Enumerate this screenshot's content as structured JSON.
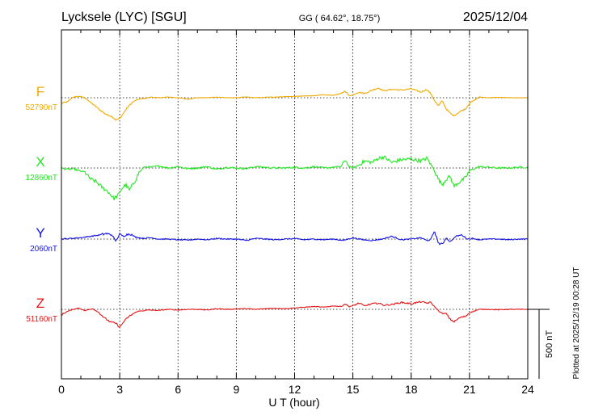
{
  "header": {
    "station": "Lycksele (LYC)  [SGU]",
    "coords": "GG ( 64.62°,  18.75°)",
    "date": "2025/12/04"
  },
  "side_note": "Plotted at 2025/12/19 00:28 UT",
  "scale_label": "500 nT",
  "chart_data": {
    "type": "line",
    "xlabel": "U T (hour)",
    "xlim": [
      0,
      24
    ],
    "xticks": [
      "0",
      "3",
      "6",
      "9",
      "12",
      "15",
      "18",
      "21",
      "24"
    ],
    "grid": true,
    "scale_bar_nT": 500,
    "series": [
      {
        "name": "F",
        "baseline_label": "52790nT",
        "baseline_nT": 52790,
        "color": "#f2a900",
        "t": [
          0,
          0.3,
          0.6,
          1.0,
          1.3,
          1.5,
          1.7,
          2.0,
          2.3,
          2.6,
          2.8,
          3.0,
          3.2,
          3.4,
          3.6,
          3.8,
          4.0,
          4.3,
          4.6,
          5.0,
          5.5,
          6.0,
          6.5,
          7.0,
          7.5,
          8.0,
          8.5,
          9.0,
          9.5,
          10.0,
          10.5,
          11.0,
          11.5,
          12.0,
          12.5,
          13.0,
          13.5,
          14.0,
          14.4,
          14.6,
          14.8,
          15.0,
          15.3,
          15.6,
          16.0,
          16.3,
          16.6,
          17.0,
          17.5,
          18.0,
          18.5,
          18.8,
          19.0,
          19.2,
          19.4,
          19.6,
          19.8,
          20.0,
          20.2,
          20.5,
          20.8,
          21.0,
          21.5,
          22.0,
          22.5,
          23.0,
          23.5,
          24.0
        ],
        "v": [
          -40,
          -30,
          5,
          10,
          -10,
          -35,
          -55,
          -90,
          -120,
          -135,
          -160,
          -150,
          -110,
          -70,
          -40,
          -20,
          -10,
          -5,
          5,
          0,
          5,
          0,
          -10,
          0,
          0,
          5,
          0,
          0,
          5,
          0,
          3,
          5,
          8,
          10,
          12,
          15,
          20,
          18,
          30,
          50,
          15,
          20,
          40,
          30,
          55,
          70,
          50,
          60,
          55,
          65,
          40,
          60,
          30,
          -20,
          -60,
          -20,
          -80,
          -110,
          -130,
          -100,
          -80,
          -40,
          5,
          0,
          3,
          0,
          0,
          0
        ]
      },
      {
        "name": "X",
        "baseline_label": "12860nT",
        "baseline_nT": 12860,
        "color": "#22e822",
        "t": [
          0,
          0.3,
          0.6,
          0.9,
          1.2,
          1.5,
          1.8,
          2.1,
          2.4,
          2.7,
          2.9,
          3.1,
          3.3,
          3.5,
          3.8,
          4.0,
          4.3,
          4.6,
          5.0,
          5.5,
          6.0,
          6.5,
          7.0,
          7.5,
          8.0,
          8.5,
          9.0,
          9.5,
          10.0,
          10.5,
          11.0,
          11.5,
          12.0,
          12.5,
          13.0,
          13.5,
          14.0,
          14.4,
          14.6,
          14.8,
          15.0,
          15.3,
          15.6,
          16.0,
          16.3,
          16.6,
          17.0,
          17.5,
          18.0,
          18.5,
          18.8,
          19.0,
          19.2,
          19.4,
          19.6,
          19.8,
          20.0,
          20.2,
          20.5,
          20.8,
          21.0,
          21.5,
          22.0,
          22.5,
          23.0,
          23.5,
          24.0
        ],
        "v": [
          0,
          -10,
          -5,
          -20,
          -30,
          -80,
          -100,
          -140,
          -170,
          -220,
          -200,
          -150,
          -120,
          -160,
          -90,
          -30,
          10,
          5,
          15,
          0,
          10,
          -5,
          0,
          10,
          -10,
          5,
          0,
          -5,
          10,
          5,
          0,
          0,
          5,
          0,
          10,
          0,
          5,
          10,
          60,
          10,
          0,
          20,
          50,
          40,
          70,
          80,
          40,
          60,
          65,
          50,
          70,
          30,
          -20,
          -80,
          -120,
          -80,
          -60,
          -130,
          -100,
          -70,
          -20,
          10,
          5,
          0,
          0,
          5,
          5
        ]
      },
      {
        "name": "Y",
        "baseline_label": "2060nT",
        "baseline_nT": 2060,
        "color": "#1414e6",
        "t": [
          0,
          0.5,
          1.0,
          1.5,
          2.0,
          2.3,
          2.6,
          2.8,
          3.0,
          3.2,
          3.5,
          3.8,
          4.2,
          4.6,
          5.0,
          5.5,
          6.0,
          6.5,
          7.0,
          7.5,
          8.0,
          8.5,
          9.0,
          9.5,
          10.0,
          10.5,
          11.0,
          11.5,
          12.0,
          12.5,
          13.0,
          13.5,
          14.0,
          14.5,
          15.0,
          15.5,
          16.0,
          16.5,
          17.0,
          17.5,
          18.0,
          18.5,
          18.8,
          19.0,
          19.2,
          19.4,
          19.6,
          19.8,
          20.0,
          20.3,
          20.6,
          20.9,
          21.2,
          21.5,
          22.0,
          22.5,
          23.0,
          23.5,
          24.0
        ],
        "v": [
          0,
          5,
          10,
          20,
          30,
          40,
          30,
          -15,
          35,
          20,
          40,
          15,
          5,
          10,
          0,
          0,
          -5,
          -8,
          0,
          -5,
          5,
          0,
          0,
          -10,
          5,
          0,
          -5,
          0,
          3,
          -5,
          0,
          -5,
          0,
          -10,
          10,
          -5,
          -10,
          0,
          20,
          -5,
          0,
          10,
          -10,
          -5,
          60,
          -30,
          -40,
          10,
          -20,
          20,
          30,
          0,
          5,
          -5,
          0,
          0,
          -5,
          0,
          0
        ]
      },
      {
        "name": "Z",
        "baseline_label": "51160nT",
        "baseline_nT": 51160,
        "color": "#e61414",
        "t": [
          0,
          0.3,
          0.6,
          0.9,
          1.2,
          1.6,
          1.9,
          2.2,
          2.5,
          2.8,
          3.0,
          3.2,
          3.4,
          3.6,
          3.9,
          4.2,
          4.5,
          5.0,
          5.5,
          6.0,
          6.5,
          7.0,
          7.5,
          8.0,
          8.5,
          9.0,
          9.5,
          10.0,
          10.5,
          11.0,
          11.5,
          12.0,
          12.5,
          13.0,
          13.5,
          14.0,
          14.4,
          14.6,
          14.8,
          15.0,
          15.3,
          15.6,
          16.0,
          16.3,
          16.6,
          17.0,
          17.5,
          18.0,
          18.5,
          18.8,
          19.0,
          19.2,
          19.4,
          19.6,
          19.8,
          20.0,
          20.2,
          20.5,
          20.8,
          21.0,
          21.5,
          22.0,
          22.5,
          23.0,
          23.5,
          24.0
        ],
        "v": [
          -40,
          -15,
          0,
          10,
          -10,
          5,
          -20,
          -60,
          -90,
          -100,
          -130,
          -90,
          -60,
          -40,
          -15,
          -10,
          -5,
          -8,
          0,
          -5,
          0,
          0,
          -5,
          5,
          0,
          3,
          5,
          0,
          5,
          8,
          5,
          10,
          15,
          20,
          15,
          25,
          20,
          40,
          20,
          25,
          45,
          25,
          40,
          45,
          30,
          35,
          50,
          40,
          55,
          45,
          50,
          20,
          -10,
          -30,
          -30,
          -70,
          -90,
          -60,
          -50,
          -25,
          0,
          0,
          -3,
          0,
          0,
          0
        ]
      }
    ]
  }
}
